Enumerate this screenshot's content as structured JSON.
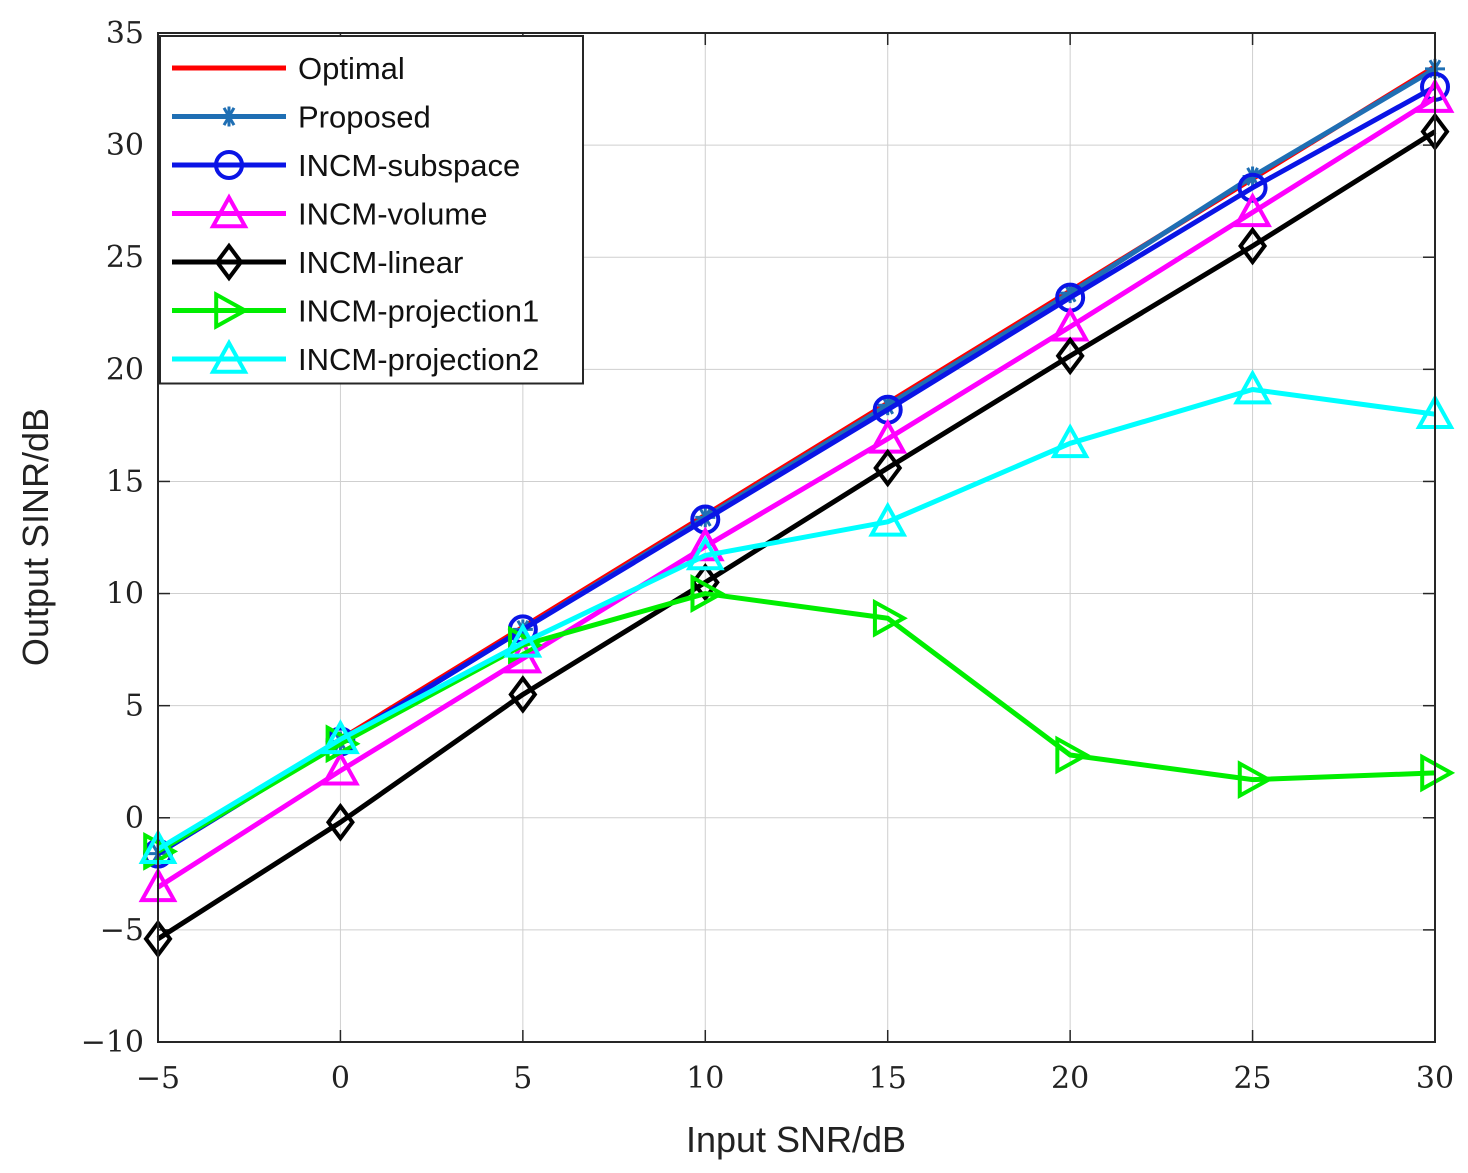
{
  "chart_data": {
    "type": "line",
    "title": "",
    "xlabel": "Input SNR/dB",
    "ylabel": "Output SINR/dB",
    "xlim": [
      -5,
      30
    ],
    "ylim": [
      -10,
      35
    ],
    "grid": true,
    "legend_position": "top-left",
    "x": [
      -5,
      0,
      5,
      10,
      15,
      20,
      25,
      30
    ],
    "x_tick_labels": [
      "−5",
      "0",
      "5",
      "10",
      "15",
      "20",
      "25",
      "30"
    ],
    "y_ticks": [
      -10,
      -5,
      0,
      5,
      10,
      15,
      20,
      25,
      30,
      35
    ],
    "y_tick_labels": [
      "−10",
      "−5",
      "0",
      "5",
      "10",
      "15",
      "20",
      "25",
      "30",
      "35"
    ],
    "series": [
      {
        "name": "Optimal",
        "color": "#ff0000",
        "marker": "none",
        "values": [
          -1.5,
          3.5,
          8.5,
          13.5,
          18.5,
          23.5,
          28.5,
          33.5
        ]
      },
      {
        "name": "Proposed",
        "color": "#1f6fb4",
        "marker": "asterisk",
        "values": [
          -1.6,
          3.4,
          8.4,
          13.4,
          18.4,
          23.4,
          28.6,
          33.4
        ]
      },
      {
        "name": "INCM-subspace",
        "color": "#0a14e6",
        "marker": "circle",
        "values": [
          -1.6,
          3.4,
          8.4,
          13.3,
          18.2,
          23.2,
          28.1,
          32.6
        ]
      },
      {
        "name": "INCM-volume",
        "color": "#ff00ff",
        "marker": "triangle-up",
        "values": [
          -3.1,
          2.1,
          7.1,
          12.1,
          16.9,
          21.9,
          27.0,
          32.1
        ]
      },
      {
        "name": "INCM-linear",
        "color": "#000000",
        "marker": "diamond",
        "values": [
          -5.4,
          -0.2,
          5.5,
          10.5,
          15.6,
          20.6,
          25.5,
          30.6
        ]
      },
      {
        "name": "INCM-projection1",
        "color": "#00ee00",
        "marker": "triangle-right",
        "values": [
          -1.5,
          3.3,
          7.7,
          10.0,
          8.9,
          2.8,
          1.7,
          2.0
        ]
      },
      {
        "name": "INCM-projection2",
        "color": "#00ffff",
        "marker": "triangle-up",
        "values": [
          -1.4,
          3.5,
          7.8,
          11.7,
          13.2,
          16.7,
          19.1,
          18.0
        ]
      }
    ]
  }
}
